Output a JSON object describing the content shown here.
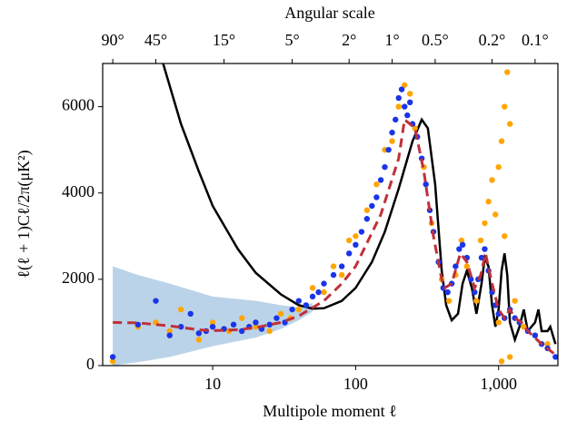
{
  "chart_data": {
    "type": "scatter",
    "top_label": "Angular scale",
    "x_label": "Multipole moment ℓ",
    "y_label": "ℓ(ℓ + 1)Cℓ/2π(μK²)",
    "xscale": "log",
    "xlim": [
      1.7,
      2600
    ],
    "ylim": [
      0,
      7000
    ],
    "xticks": [
      10,
      100,
      {
        "value": 1000,
        "label": "1,000"
      }
    ],
    "yticks": [
      0,
      2000,
      4000,
      6000
    ],
    "x2ticks": [
      {
        "value": 2,
        "label": "90°"
      },
      {
        "value": 4,
        "label": "45°"
      },
      {
        "value": 12,
        "label": "15°"
      },
      {
        "value": 36,
        "label": "5°"
      },
      {
        "value": 90,
        "label": "2°"
      },
      {
        "value": 180,
        "label": "1°"
      },
      {
        "value": 360,
        "label": "0.5°"
      },
      {
        "value": 900,
        "label": "0.2°"
      },
      {
        "value": 1800,
        "label": "0.1°"
      }
    ],
    "series": [
      {
        "kind": "band",
        "color": "#a9c8e2",
        "x": [
          2,
          3,
          5,
          10,
          20,
          30,
          40,
          50
        ],
        "lower": [
          0,
          80,
          200,
          450,
          650,
          850,
          1050,
          1250
        ],
        "upper": [
          2300,
          2100,
          1900,
          1600,
          1500,
          1400,
          1350,
          1450
        ]
      },
      {
        "kind": "line",
        "color": "#000000",
        "dashed": false,
        "x": [
          4.5,
          6,
          8,
          10,
          15,
          20,
          30,
          40,
          50,
          60,
          80,
          100,
          130,
          160,
          200,
          250,
          290,
          320,
          360,
          400,
          430,
          470,
          520,
          560,
          600,
          650,
          700,
          760,
          800,
          850,
          900,
          950,
          1000,
          1050,
          1100,
          1150,
          1200,
          1300,
          1400,
          1500,
          1600,
          1800,
          1900,
          2000,
          2200,
          2300,
          2500
        ],
        "values": [
          7000,
          5600,
          4500,
          3700,
          2700,
          2150,
          1650,
          1400,
          1320,
          1330,
          1500,
          1800,
          2400,
          3100,
          4100,
          5200,
          5700,
          5500,
          4200,
          2200,
          1400,
          1050,
          1200,
          1900,
          2200,
          1800,
          1200,
          1900,
          2500,
          2300,
          1400,
          900,
          1300,
          2200,
          2600,
          2100,
          1000,
          600,
          900,
          1300,
          800,
          1000,
          1300,
          800,
          800,
          900,
          500
        ]
      },
      {
        "kind": "scatter",
        "color": "#ffa500",
        "x": [
          2,
          3,
          4,
          5,
          6,
          8,
          10,
          13,
          16,
          20,
          25,
          30,
          35,
          40,
          50,
          60,
          70,
          80,
          90,
          100,
          120,
          140,
          160,
          180,
          200,
          220,
          240,
          260,
          300,
          340,
          400,
          450,
          500,
          550,
          600,
          700,
          750,
          800,
          850,
          900,
          950,
          1000,
          1050,
          1100,
          1150,
          1200,
          1100,
          1000,
          1200,
          1050,
          1300,
          1500,
          1800,
          2200
        ],
        "values": [
          100,
          900,
          1000,
          800,
          1300,
          600,
          1000,
          800,
          1100,
          900,
          800,
          1200,
          1100,
          1300,
          1800,
          1700,
          2300,
          2100,
          2900,
          3000,
          3600,
          4200,
          5000,
          5200,
          6000,
          6500,
          6300,
          5500,
          4600,
          3300,
          2000,
          1500,
          2100,
          2900,
          2300,
          1500,
          2900,
          3300,
          3800,
          4300,
          3500,
          4600,
          5200,
          6000,
          6800,
          5600,
          3000,
          1000,
          200,
          100,
          1500,
          900,
          700,
          500
        ]
      },
      {
        "kind": "scatter",
        "color": "#1a35e8",
        "x": [
          2,
          3,
          4,
          5,
          6,
          7,
          8,
          9,
          10,
          12,
          14,
          16,
          18,
          20,
          22,
          25,
          28,
          32,
          36,
          40,
          45,
          50,
          55,
          60,
          70,
          80,
          90,
          100,
          110,
          120,
          130,
          140,
          150,
          160,
          170,
          180,
          190,
          200,
          210,
          220,
          230,
          240,
          250,
          270,
          290,
          310,
          330,
          350,
          380,
          410,
          440,
          470,
          500,
          530,
          560,
          600,
          640,
          680,
          720,
          760,
          800,
          850,
          900,
          950,
          1000,
          1100,
          1200,
          1300,
          1400,
          1600,
          1800,
          2000,
          2200,
          2500
        ],
        "values": [
          200,
          950,
          1500,
          700,
          900,
          1200,
          750,
          800,
          900,
          850,
          950,
          800,
          900,
          1000,
          850,
          950,
          1100,
          1000,
          1300,
          1500,
          1400,
          1600,
          1700,
          1900,
          2100,
          2300,
          2600,
          2800,
          3100,
          3400,
          3700,
          3900,
          4300,
          4600,
          5000,
          5400,
          5700,
          6200,
          6400,
          6000,
          5800,
          6100,
          5600,
          5300,
          4800,
          4200,
          3600,
          3100,
          2400,
          1800,
          1700,
          1900,
          2300,
          2700,
          2800,
          2500,
          2000,
          1700,
          2000,
          2500,
          2700,
          2200,
          1700,
          1400,
          1200,
          1100,
          1300,
          1100,
          1000,
          800,
          700,
          500,
          400,
          200
        ]
      },
      {
        "kind": "line",
        "color": "#c0303a",
        "dashed": true,
        "x": [
          2,
          3,
          5,
          8,
          10,
          15,
          20,
          30,
          40,
          60,
          80,
          100,
          150,
          200,
          220,
          260,
          300,
          350,
          400,
          420,
          470,
          540,
          600,
          680,
          750,
          810,
          900,
          1000,
          1100,
          1200,
          1300,
          1450,
          1600,
          2000,
          2500
        ],
        "values": [
          1000,
          990,
          920,
          830,
          810,
          830,
          880,
          1000,
          1150,
          1500,
          1900,
          2300,
          3500,
          4800,
          5700,
          5500,
          4500,
          3000,
          2000,
          1800,
          1900,
          2600,
          2400,
          1800,
          2100,
          2600,
          1900,
          1300,
          1100,
          1300,
          1100,
          1000,
          800,
          500,
          250
        ]
      }
    ]
  }
}
